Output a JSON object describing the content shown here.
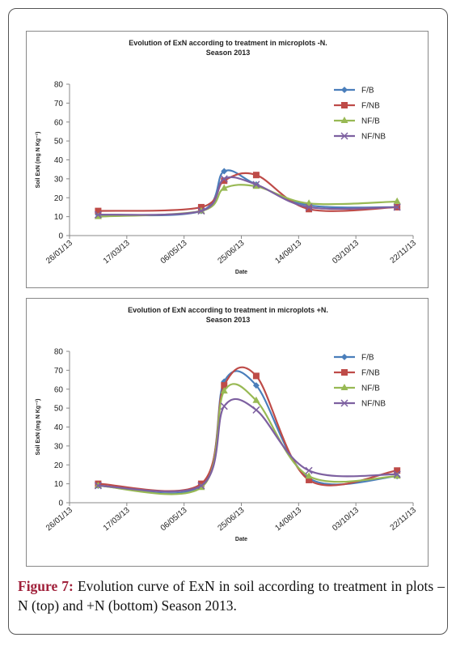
{
  "chart_data": [
    {
      "type": "line",
      "smooth": true,
      "title": "Evolution of ExN according to treatment in microplots -N.",
      "subtitle": "Season 2013",
      "x_label": "Date",
      "y_label": "Soil ExN (mg N Kg⁻¹)",
      "x": [
        "20/02/13",
        "21/05/13",
        "10/06/13",
        "08/07/13",
        "23/08/13",
        "08/11/13"
      ],
      "xlim": [
        "26/01/13",
        "22/11/13"
      ],
      "xticks": [
        "26/01/13",
        "17/03/13",
        "06/05/13",
        "25/06/13",
        "14/08/13",
        "03/10/13",
        "22/11/13"
      ],
      "ylim": [
        0,
        80
      ],
      "yticks": [
        0,
        10,
        20,
        30,
        40,
        50,
        60,
        70,
        80
      ],
      "legend": "upper right",
      "series": [
        {
          "name": "F/B",
          "color": "#4a7ebb",
          "marker": "diamond",
          "values": [
            11,
            13,
            34,
            27,
            16,
            15
          ]
        },
        {
          "name": "F/NB",
          "color": "#be4b48",
          "marker": "square",
          "values": [
            13,
            15,
            29,
            32,
            14,
            15
          ]
        },
        {
          "name": "NF/B",
          "color": "#98b954",
          "marker": "triangle",
          "values": [
            10,
            13,
            25,
            26,
            17,
            18
          ]
        },
        {
          "name": "NF/NB",
          "color": "#7d60a0",
          "marker": "x",
          "values": [
            11,
            13,
            30,
            27,
            15,
            15
          ]
        }
      ]
    },
    {
      "type": "line",
      "smooth": true,
      "title": "Evolution of ExN according to treatment in microplots +N.",
      "subtitle": "Season 2013",
      "x_label": "Date",
      "y_label": "Soil ExN (mg N Kg⁻¹)",
      "x": [
        "20/02/13",
        "21/05/13",
        "10/06/13",
        "08/07/13",
        "23/08/13",
        "08/11/13"
      ],
      "xlim": [
        "26/01/13",
        "22/11/13"
      ],
      "xticks": [
        "26/01/13",
        "17/03/13",
        "06/05/13",
        "25/06/13",
        "14/08/13",
        "03/10/13",
        "22/11/13"
      ],
      "ylim": [
        0,
        80
      ],
      "yticks": [
        0,
        10,
        20,
        30,
        40,
        50,
        60,
        70,
        80
      ],
      "legend": "upper right",
      "series": [
        {
          "name": "F/B",
          "color": "#4a7ebb",
          "marker": "diamond",
          "values": [
            9,
            9,
            64,
            62,
            13,
            14
          ]
        },
        {
          "name": "F/NB",
          "color": "#be4b48",
          "marker": "square",
          "values": [
            10,
            10,
            62,
            67,
            12,
            17
          ]
        },
        {
          "name": "NF/B",
          "color": "#98b954",
          "marker": "triangle",
          "values": [
            9,
            8,
            59,
            54,
            14,
            14
          ]
        },
        {
          "name": "NF/NB",
          "color": "#7d60a0",
          "marker": "x",
          "values": [
            9,
            9,
            51,
            49,
            17,
            15
          ]
        }
      ]
    }
  ],
  "caption": {
    "label": "Figure 7:",
    "text": "Evolution curve of ExN in soil according to treatment in plots –N (top) and +N (bottom) Season 2013."
  }
}
